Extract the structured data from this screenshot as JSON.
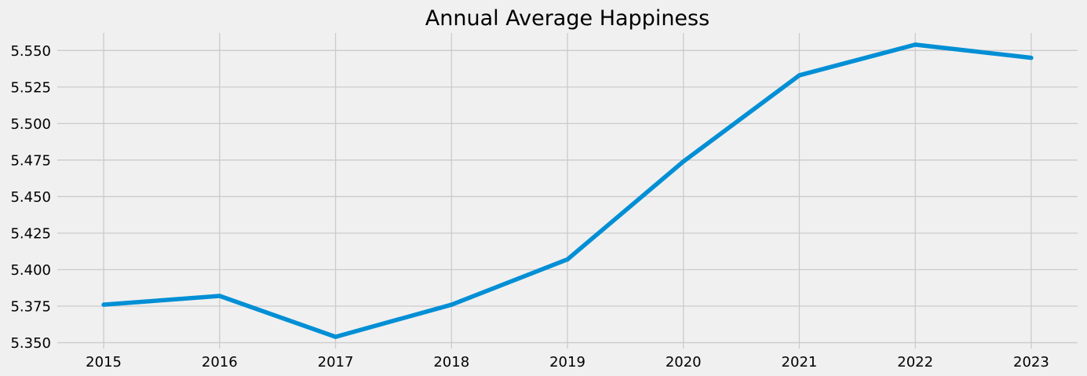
{
  "chart_data": {
    "type": "line",
    "title": "Annual Average Happiness",
    "xlabel": "",
    "ylabel": "",
    "x": [
      2015,
      2016,
      2017,
      2018,
      2019,
      2020,
      2021,
      2022,
      2023
    ],
    "series": [
      {
        "values": [
          5.376,
          5.382,
          5.354,
          5.376,
          5.407,
          5.474,
          5.533,
          5.554,
          5.545
        ],
        "color": "#008fd5"
      }
    ],
    "xlim": [
      2014.6,
      2023.4
    ],
    "ylim": [
      5.346,
      5.562
    ],
    "yticks": [
      "5.350",
      "5.375",
      "5.400",
      "5.425",
      "5.450",
      "5.475",
      "5.500",
      "5.525",
      "5.550"
    ],
    "xticks": [
      "2015",
      "2016",
      "2017",
      "2018",
      "2019",
      "2020",
      "2021",
      "2022",
      "2023"
    ],
    "grid": true,
    "background": "#f0f0f0",
    "grid_color": "#cbcbcb"
  }
}
